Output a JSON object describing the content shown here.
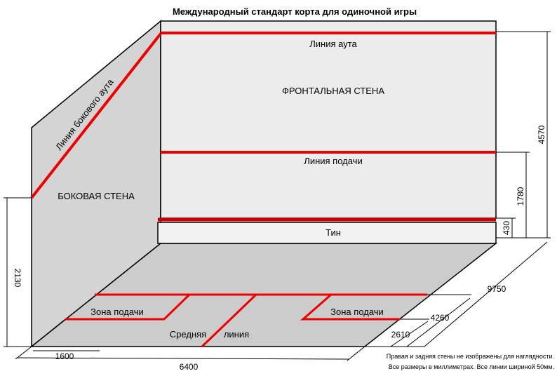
{
  "title": "Международный стандарт корта для одиночной игры",
  "labels": {
    "out_line": "Линия аута",
    "front_wall": "ФРОНТАЛЬНАЯ СТЕНА",
    "service_line": "Линия подачи",
    "side_wall": "БОКОВАЯ СТЕНА",
    "side_out_line": "Линия бокового аута",
    "tin": "Тин",
    "service_box_left": "Зона подачи",
    "service_box_right": "Зона подачи",
    "half_court_line_a": "Средняя",
    "half_court_line_b": "линия"
  },
  "dimensions": {
    "front_height": "4570",
    "service_height": "1780",
    "tin_height": "430",
    "back_wall_height": "2130",
    "court_length": "9750",
    "short_line": "4260",
    "service_box_depth": "2610",
    "service_box_width": "1600",
    "court_width": "6400"
  },
  "notes": {
    "line1": "Правая и задняя стены не изображены для наглядности.",
    "line2": "Все размеры в миллиметрах. Все линии шириной 50мм."
  },
  "colors": {
    "line": "#ee0000",
    "front_wall": "#ececec",
    "side_wall": "#d4d4d4",
    "floor": "#cccccc"
  }
}
